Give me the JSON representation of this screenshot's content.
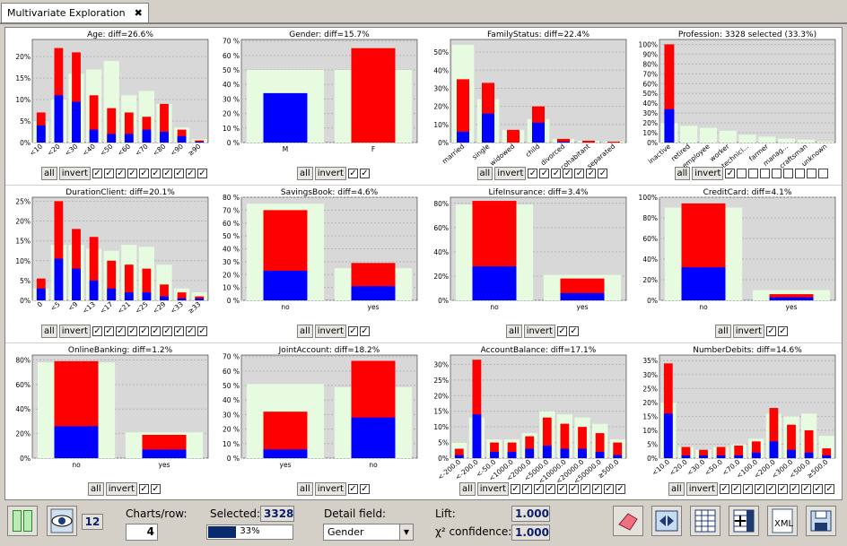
{
  "tab": {
    "label": "Multivariate Exploration",
    "close": "✖"
  },
  "colors": {
    "red": "#ff0000",
    "blue": "#0000ff",
    "bg": "#d8d8d8",
    "ref": "#e6fbe0",
    "sel_title": "#0000c0"
  },
  "controls": {
    "all": "all",
    "invert": "invert"
  },
  "charts": [
    {
      "title": "Age: diff=26.6%",
      "yticks": [
        "0%",
        "5%",
        "10%",
        "15%",
        "20%"
      ],
      "ymax": 24,
      "cats": [
        "<10",
        "<20",
        "<30",
        "<40",
        "<50",
        "<60",
        "<70",
        "<80",
        "<90",
        "≥90"
      ],
      "ref": [
        5,
        10,
        16,
        17,
        19,
        11,
        12,
        9,
        3.5,
        0.8
      ],
      "red": [
        7,
        22,
        21,
        11,
        8,
        7,
        6,
        9,
        3,
        0.5
      ],
      "blue": [
        4,
        11,
        9.5,
        3,
        2,
        2,
        3,
        2.5,
        1.5,
        0.2
      ],
      "checks": [
        true,
        true,
        true,
        true,
        true,
        true,
        true,
        true,
        true,
        true
      ],
      "inv": false
    },
    {
      "title": "Gender: diff=15.7%",
      "yticks": [
        "0 %",
        "10 %",
        "20 %",
        "30 %",
        "40 %",
        "50 %",
        "60 %",
        "70 %"
      ],
      "ymax": 71,
      "cats": [
        "M",
        "F"
      ],
      "ref": [
        50,
        50
      ],
      "red": [
        34,
        65
      ],
      "blue": [
        34,
        0
      ],
      "checks": [
        true,
        true
      ],
      "inv": false
    },
    {
      "title": "FamilyStatus: diff=22.4%",
      "yticks": [
        "0%",
        "10%",
        "20%",
        "30%",
        "40%",
        "50%"
      ],
      "ymax": 57,
      "cats": [
        "married",
        "single",
        "widowed",
        "child",
        "divorced",
        "cohabitant",
        "separated"
      ],
      "ref": [
        54,
        24,
        7,
        13,
        2,
        1,
        0.5
      ],
      "red": [
        35,
        33,
        7,
        20,
        2,
        1,
        0.5
      ],
      "blue": [
        6,
        16,
        0,
        11,
        0.5,
        0,
        0
      ],
      "checks": [
        true,
        true,
        true,
        true,
        true,
        true,
        true
      ],
      "inv": false
    },
    {
      "title": "Profession: 3328 selected (33.3%)",
      "sel": true,
      "yticks": [
        "0%",
        "10%",
        "20%",
        "30%",
        "40%",
        "50%",
        "60%",
        "70%",
        "80%",
        "90%",
        "100%"
      ],
      "ymax": 105,
      "cats": [
        "inactive",
        "retired",
        "employee",
        "worker",
        "technici...",
        "farmer",
        "manag...",
        "craftsman",
        "unknown"
      ],
      "ref": [
        20,
        17,
        15,
        12,
        8,
        6,
        4,
        3,
        1
      ],
      "red": [
        100,
        0,
        0,
        0,
        0,
        0,
        0,
        0,
        0
      ],
      "blue": [
        34,
        0,
        0,
        0,
        0,
        0,
        0,
        0,
        0
      ],
      "checks": [
        true,
        false,
        false,
        false,
        false,
        false,
        false,
        false,
        false
      ],
      "inv": false
    },
    {
      "title": "DurationClient: diff=20.1%",
      "yticks": [
        "0%",
        "5%",
        "10%",
        "15%",
        "20%",
        "25%"
      ],
      "ymax": 26,
      "cats": [
        "0",
        "<5",
        "<9",
        "<13",
        "<17",
        "<21",
        "<25",
        "<29",
        "<33",
        "≥33"
      ],
      "ref": [
        3,
        14,
        14,
        13,
        12.5,
        14,
        13.5,
        9,
        3,
        2
      ],
      "red": [
        5.5,
        25,
        18,
        16,
        10,
        9,
        8,
        4,
        2,
        1
      ],
      "blue": [
        3,
        10.5,
        8,
        5,
        3,
        2,
        2,
        1,
        0.5,
        0.5
      ],
      "checks": [
        true,
        true,
        true,
        true,
        true,
        true,
        true,
        true,
        true,
        true
      ],
      "inv": false
    },
    {
      "title": "SavingsBook: diff=4.6%",
      "yticks": [
        "0 %",
        "10 %",
        "20 %",
        "30 %",
        "40 %",
        "50 %",
        "60 %",
        "70 %",
        "80 %"
      ],
      "ymax": 80,
      "cats": [
        "no",
        "yes"
      ],
      "ref": [
        75,
        25
      ],
      "red": [
        70,
        29
      ],
      "blue": [
        23,
        11
      ],
      "checks": [
        true,
        true
      ],
      "inv": false
    },
    {
      "title": "LifeInsurance: diff=3.4%",
      "yticks": [
        "0%",
        "20%",
        "40%",
        "60%",
        "80%"
      ],
      "ymax": 85,
      "cats": [
        "no",
        "yes"
      ],
      "ref": [
        79,
        21
      ],
      "red": [
        82,
        18
      ],
      "blue": [
        28,
        6
      ],
      "checks": [
        true,
        true
      ],
      "inv": false
    },
    {
      "title": "CreditCard: diff=4.1%",
      "yticks": [
        "0%",
        "20%",
        "40%",
        "60%",
        "80%",
        "100%"
      ],
      "ymax": 100,
      "cats": [
        "no",
        "yes"
      ],
      "ref": [
        90,
        10
      ],
      "red": [
        94,
        6
      ],
      "blue": [
        32,
        3
      ],
      "checks": [
        true,
        true
      ],
      "inv": false
    },
    {
      "title": "OnlineBanking: diff=1.2%",
      "yticks": [
        "0%",
        "20%",
        "40%",
        "60%",
        "80%"
      ],
      "ymax": 84,
      "cats": [
        "no",
        "yes"
      ],
      "ref": [
        78,
        21
      ],
      "red": [
        79,
        19
      ],
      "blue": [
        26,
        7
      ],
      "checks": [
        true,
        true
      ],
      "inv": false
    },
    {
      "title": "JointAccount: diff=18.2%",
      "yticks": [
        "0 %",
        "10 %",
        "20 %",
        "30 %",
        "40 %",
        "50 %",
        "60 %",
        "70 %"
      ],
      "ymax": 71,
      "cats": [
        "yes",
        "no"
      ],
      "ref": [
        51,
        49
      ],
      "red": [
        32,
        67
      ],
      "blue": [
        6,
        28
      ],
      "checks": [
        true,
        true
      ],
      "inv": false
    },
    {
      "title": "AccountBalance: diff=17.1%",
      "yticks": [
        "0%",
        "5%",
        "10%",
        "15%",
        "20%",
        "25%",
        "30%"
      ],
      "ymax": 33,
      "cats": [
        "<-200.0",
        "<-200.0",
        "<-50.0",
        "<1000.0",
        "<2000.0",
        "<5000.0",
        "<10000.0",
        "<20000.0",
        "<50000.0",
        "≥500.0"
      ],
      "ref": [
        5,
        13,
        6,
        6,
        8,
        15,
        14,
        13,
        11,
        6
      ],
      "red": [
        3,
        31.5,
        5,
        5,
        7,
        13,
        11,
        10,
        8,
        5
      ],
      "blue": [
        1,
        14,
        2,
        2,
        3,
        4,
        3,
        3,
        2,
        1
      ],
      "checks": [
        true,
        true,
        true,
        true,
        true,
        true,
        true,
        true,
        true,
        true
      ],
      "inv": false
    },
    {
      "title": "NumberDebits: diff=14.6%",
      "yticks": [
        "0%",
        "5%",
        "10%",
        "15%",
        "20%",
        "25%",
        "30%",
        "35%"
      ],
      "ymax": 37,
      "cats": [
        "<10.0",
        "<20.0",
        "<30.0",
        "<50.0",
        "<70.0",
        "<100.0",
        "<200.0",
        "<300.0",
        "<500.0",
        "≥500.0"
      ],
      "ref": [
        20,
        4,
        3,
        4,
        5,
        7,
        16,
        15,
        16,
        8
      ],
      "red": [
        34,
        4,
        3,
        4,
        4.5,
        6,
        18,
        12,
        10,
        3.5
      ],
      "blue": [
        16,
        1,
        1,
        1,
        1,
        2,
        6,
        3,
        2,
        1
      ],
      "checks": [
        true,
        true,
        true,
        true,
        true,
        true,
        true,
        true,
        true,
        true
      ],
      "inv": false
    }
  ],
  "bottom": {
    "count": "12",
    "charts_row_label": "Charts/row:",
    "charts_row": "4",
    "selected_label": "Selected:",
    "selected": "3328",
    "progress": 0.33,
    "progress_text": "33%",
    "detail_label": "Detail field:",
    "detail_value": "Gender",
    "lift_label": "Lift:",
    "lift": "1.000",
    "chi_label": "χ² confidence:",
    "chi": "1.000"
  }
}
